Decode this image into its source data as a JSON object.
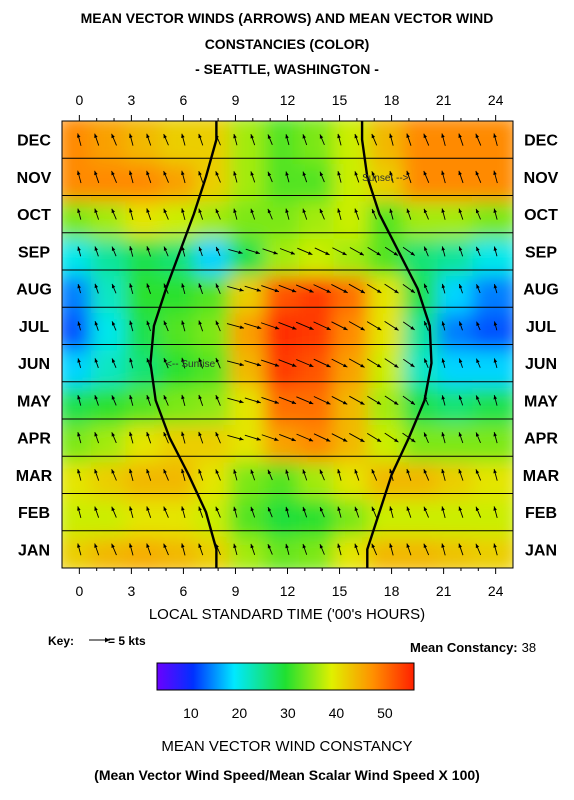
{
  "header": {
    "line1": "MEAN VECTOR WINDS (ARROWS) AND MEAN VECTOR WIND",
    "line2": "CONSTANCIES (COLOR)",
    "line3": "- SEATTLE, WASHINGTON -"
  },
  "key": {
    "label": "Key:",
    "value": "= 5 kts"
  },
  "mean_constancy": {
    "label": "Mean Constancy:",
    "value": "38"
  },
  "colorbar": {
    "ticks": [
      "10",
      "20",
      "30",
      "40",
      "50"
    ],
    "range": [
      3,
      56
    ]
  },
  "footer": {
    "title": "MEAN VECTOR WIND CONSTANCY",
    "formula": "(Mean Vector Wind Speed/Mean Scalar Wind Speed X 100)"
  },
  "chart_data": {
    "type": "heatmap",
    "xlabel": "LOCAL STANDARD TIME ('00's HOURS)",
    "x_ticks": [
      "0",
      "3",
      "6",
      "9",
      "12",
      "15",
      "18",
      "21",
      "24"
    ],
    "xlim": [
      -1,
      25
    ],
    "months": [
      "JAN",
      "FEB",
      "MAR",
      "APR",
      "MAY",
      "JUN",
      "JUL",
      "AUG",
      "SEP",
      "OCT",
      "NOV",
      "DEC"
    ],
    "hours": [
      0,
      2,
      4,
      6,
      8,
      10,
      12,
      14,
      16,
      18,
      20,
      22,
      24
    ],
    "constancy": [
      [
        42,
        44,
        45,
        44,
        42,
        36,
        33,
        34,
        40,
        44,
        44,
        43,
        42
      ],
      [
        38,
        38,
        40,
        40,
        38,
        32,
        29,
        30,
        34,
        38,
        38,
        38,
        38
      ],
      [
        40,
        42,
        44,
        44,
        40,
        34,
        32,
        36,
        40,
        44,
        44,
        42,
        40
      ],
      [
        34,
        36,
        40,
        42,
        42,
        40,
        46,
        48,
        44,
        38,
        34,
        34,
        34
      ],
      [
        28,
        30,
        32,
        34,
        35,
        40,
        50,
        50,
        44,
        36,
        28,
        26,
        28
      ],
      [
        18,
        22,
        26,
        30,
        32,
        44,
        54,
        52,
        46,
        38,
        22,
        18,
        18
      ],
      [
        12,
        20,
        28,
        32,
        34,
        46,
        55,
        54,
        48,
        40,
        24,
        14,
        12
      ],
      [
        14,
        22,
        30,
        30,
        32,
        42,
        52,
        54,
        50,
        40,
        28,
        18,
        14
      ],
      [
        20,
        24,
        28,
        26,
        18,
        28,
        36,
        38,
        36,
        32,
        26,
        24,
        20
      ],
      [
        34,
        36,
        40,
        38,
        36,
        34,
        34,
        36,
        38,
        32,
        36,
        36,
        34
      ],
      [
        48,
        48,
        48,
        46,
        42,
        36,
        32,
        32,
        38,
        42,
        48,
        48,
        48
      ],
      [
        48,
        46,
        44,
        42,
        42,
        36,
        32,
        34,
        38,
        44,
        48,
        48,
        48
      ]
    ],
    "wind_arrows_note": "arrows show mean vector wind direction and speed",
    "annotations": [
      {
        "text": "Sunset -->",
        "month": "NOV",
        "hour": 16.3
      },
      {
        "text": "<-- Sunrise",
        "month": "JUN",
        "hour": 5.0
      }
    ],
    "sunrise_hour_by_month": [
      7.9,
      7.3,
      6.3,
      5.2,
      4.4,
      4.1,
      4.3,
      5.0,
      5.8,
      6.6,
      7.3,
      7.9
    ],
    "sunset_hour_by_month": [
      16.6,
      17.3,
      18.0,
      19.0,
      19.9,
      20.3,
      20.2,
      19.5,
      18.4,
      17.3,
      16.6,
      16.3
    ]
  }
}
